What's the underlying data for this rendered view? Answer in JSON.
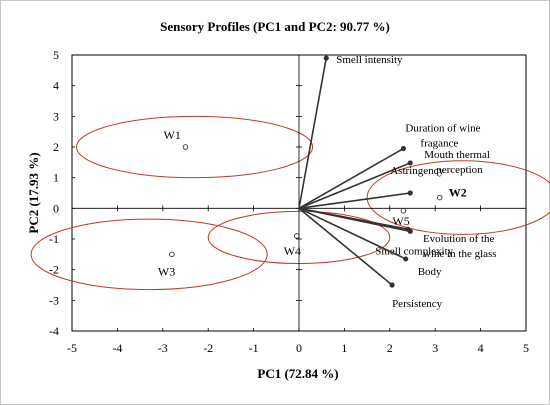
{
  "chart_data": {
    "type": "scatter",
    "title": "Sensory Profiles (PC1 and PC2: 90.77 %)",
    "xlabel": "PC1 (72.84 %)",
    "ylabel": "PC2 (17.93 %)",
    "xlim": [
      -5,
      5
    ],
    "ylim": [
      -4,
      5
    ],
    "xticks": [
      -5,
      -4,
      -3,
      -2,
      -1,
      0,
      1,
      2,
      3,
      4,
      5
    ],
    "yticks": [
      -4,
      -3,
      -2,
      -1,
      0,
      1,
      2,
      3,
      4,
      5
    ],
    "tick_labels_x": [
      "-5",
      "-4",
      "-3",
      "-2",
      "-1",
      "0",
      "1",
      "2",
      "3",
      "4",
      "5"
    ],
    "tick_labels_y": [
      "-4",
      "-3",
      "-2",
      "-1",
      "0",
      "1",
      "2",
      "3",
      "4",
      "5"
    ],
    "grid": false,
    "samples": [
      {
        "label": "W1",
        "x": -2.5,
        "y": 2.0
      },
      {
        "label": "W2",
        "x": 3.1,
        "y": 0.35
      },
      {
        "label": "W3",
        "x": -2.8,
        "y": -1.5
      },
      {
        "label": "W4",
        "x": -0.05,
        "y": -0.9
      },
      {
        "label": "W5",
        "x": 2.3,
        "y": -0.08
      }
    ],
    "variables": [
      {
        "label": "Smell intensity",
        "x": 0.6,
        "y": 4.9
      },
      {
        "label": "Duration of wine fragance",
        "x": 2.3,
        "y": 1.95
      },
      {
        "label": "Mouth thermal perception",
        "x": 2.45,
        "y": 1.48
      },
      {
        "label": "Astringency",
        "x": 2.45,
        "y": 0.5
      },
      {
        "label": "Evolution of the wine in the glass",
        "x": 2.4,
        "y": -0.68
      },
      {
        "label": "Smell complexity",
        "x": 2.45,
        "y": -0.75
      },
      {
        "label": "Body",
        "x": 2.35,
        "y": -1.65
      },
      {
        "label": "Persistency",
        "x": 2.05,
        "y": -2.5
      }
    ],
    "ellipses": [
      {
        "group": "W1",
        "cx": -2.3,
        "cy": 2.0,
        "rx": 2.6,
        "ry": 1.0
      },
      {
        "group": "W2",
        "cx": 3.6,
        "cy": 0.35,
        "rx": 2.1,
        "ry": 1.2
      },
      {
        "group": "W3",
        "cx": -3.3,
        "cy": -1.5,
        "rx": 2.6,
        "ry": 1.15
      },
      {
        "group": "W4",
        "cx": 0.0,
        "cy": -0.95,
        "rx": 2.0,
        "ry": 0.85
      }
    ],
    "colors": {
      "ellipse": "#c0392b",
      "vector": "#333333",
      "axis": "#000000"
    }
  }
}
